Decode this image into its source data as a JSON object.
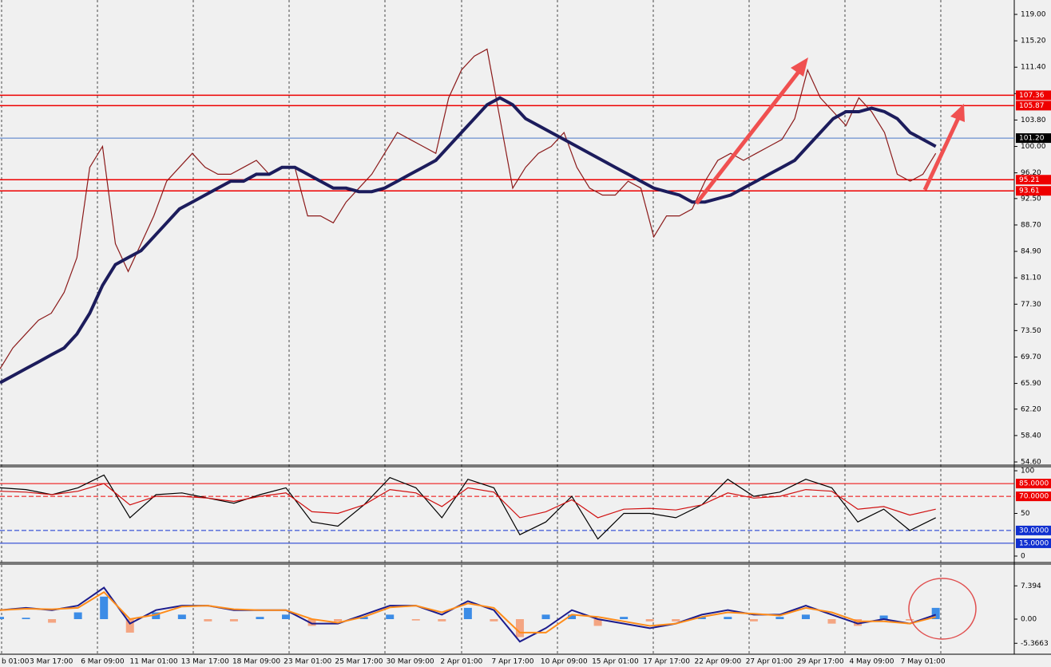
{
  "chart_data": [
    {
      "type": "line",
      "categories": [
        "b 01:00",
        null,
        null,
        null,
        "3 Mar 17:00",
        null,
        null,
        null,
        "6 Mar 09:00",
        null,
        null,
        null,
        "11 Mar 01:00",
        null,
        null,
        null,
        "13 Mar 17:00",
        null,
        null,
        null,
        "18 Mar 09:00",
        null,
        null,
        null,
        "23 Mar 01:00",
        null,
        null,
        null,
        "25 Mar 17:00",
        null,
        null,
        null,
        "30 Mar 09:00",
        null,
        null,
        null,
        "2 Apr 01:00",
        null,
        null,
        null,
        "7 Apr 17:00",
        null,
        null,
        null,
        "10 Apr 09:00",
        null,
        null,
        null,
        "15 Apr 01:00",
        null,
        null,
        null,
        "17 Apr 17:00",
        null,
        null,
        null,
        "22 Apr 09:00",
        null,
        null,
        null,
        "27 Apr 01:00",
        null,
        null,
        null,
        "29 Apr 17:00",
        null,
        null,
        null,
        "4 May 09:00",
        null,
        null,
        null,
        "7 May 01:00",
        null
      ],
      "series": [
        {
          "color": "#8b1a1a",
          "values": [
            68,
            71,
            73,
            75,
            76,
            79,
            84,
            97,
            100,
            86,
            82,
            86,
            90,
            95,
            97,
            99,
            97,
            96,
            96,
            97,
            98,
            96,
            97,
            97,
            90,
            90,
            89,
            92,
            94,
            96,
            99,
            102,
            101,
            100,
            99,
            107,
            111,
            113,
            114,
            104,
            94,
            97,
            99,
            100,
            102,
            97,
            94,
            93,
            93,
            95,
            94,
            87,
            90,
            90,
            91,
            95,
            98,
            99,
            98,
            99,
            100,
            101,
            104,
            111,
            107,
            105,
            103,
            107,
            105,
            102,
            96,
            95,
            96,
            99
          ]
        },
        {
          "color": "#1c1c5c",
          "values": [
            66,
            67,
            68,
            69,
            70,
            71,
            73,
            76,
            80,
            83,
            84,
            85,
            87,
            89,
            91,
            92,
            93,
            94,
            95,
            95,
            96,
            96,
            97,
            97,
            96,
            95,
            94,
            94,
            93.5,
            93.5,
            94,
            95,
            96,
            97,
            98,
            100,
            102,
            104,
            106,
            107,
            106,
            104,
            103,
            102,
            101,
            100,
            99,
            98,
            97,
            96,
            95,
            94,
            93.5,
            93,
            92,
            92,
            92.5,
            93,
            94,
            95,
            96,
            97,
            98,
            100,
            102,
            104,
            105,
            105,
            105.5,
            105,
            104,
            102,
            101,
            100
          ]
        }
      ],
      "ylim": [
        54.14,
        121.07
      ],
      "yticks": [
        {
          "value": 119,
          "label": "119.00"
        },
        {
          "value": 115.2,
          "label": "115.20"
        },
        {
          "value": 111.4,
          "label": "111.40"
        },
        {
          "value": 107.6,
          "label": "107.60"
        },
        {
          "value": 103.8,
          "label": "103.80"
        },
        {
          "value": 100,
          "label": "100.00"
        },
        {
          "value": 96.2,
          "label": "96.20"
        },
        {
          "value": 92.5,
          "label": "92.50"
        },
        {
          "value": 88.7,
          "label": "88.70"
        },
        {
          "value": 84.9,
          "label": "84.90"
        },
        {
          "value": 81.1,
          "label": "81.10"
        },
        {
          "value": 77.3,
          "label": "77.30"
        },
        {
          "value": 73.5,
          "label": "73.50"
        },
        {
          "value": 69.7,
          "label": "69.70"
        },
        {
          "value": 65.9,
          "label": "65.90"
        },
        {
          "value": 62.2,
          "label": "62.20"
        },
        {
          "value": 58.4,
          "label": "58.40"
        },
        {
          "value": 54.6,
          "label": "54.60"
        }
      ],
      "levels": [
        {
          "value": 107.36,
          "label": "107.36",
          "color": "#ee0000"
        },
        {
          "value": 105.87,
          "label": "105.87",
          "color": "#ee0000"
        },
        {
          "value": 101.2,
          "label": "101.20",
          "color": "#000000",
          "line_color": "#4a78c8"
        },
        {
          "value": 95.21,
          "label": "95.21",
          "color": "#ee0000"
        },
        {
          "value": 93.61,
          "label": "93.61",
          "color": "#ee0000"
        }
      ]
    },
    {
      "type": "line",
      "series": [
        {
          "color": "#000000",
          "values": [
            80,
            78,
            72,
            80,
            95,
            45,
            72,
            74,
            68,
            62,
            72,
            80,
            40,
            35,
            60,
            92,
            80,
            45,
            90,
            80,
            25,
            40,
            70,
            20,
            50,
            50,
            45,
            60,
            90,
            70,
            75,
            90,
            80,
            40,
            55,
            30,
            45
          ]
        },
        {
          "color": "#d01010",
          "values": [
            76,
            75,
            72,
            76,
            85,
            60,
            70,
            70,
            68,
            64,
            70,
            74,
            52,
            50,
            60,
            78,
            74,
            58,
            80,
            75,
            45,
            52,
            66,
            45,
            55,
            56,
            54,
            60,
            74,
            68,
            70,
            78,
            76,
            55,
            58,
            48,
            55
          ]
        }
      ],
      "ylim": [
        -7.5,
        104.7
      ],
      "yticks": [
        0,
        50,
        100
      ],
      "levels": [
        {
          "value": 85,
          "label": "85.0000",
          "color": "#ee0000"
        },
        {
          "value": 70,
          "label": "70.0000",
          "color": "#ee0000"
        },
        {
          "value": 30,
          "label": "30.0000",
          "color": "#1030d0"
        },
        {
          "value": 15,
          "label": "15.0000",
          "color": "#1030d0"
        }
      ]
    },
    {
      "type": "macd",
      "values": [
        0.5,
        0.3,
        -0.8,
        1.5,
        5,
        -3,
        1.5,
        1,
        -0.5,
        -0.5,
        0.5,
        1,
        -1.5,
        -0.5,
        0.5,
        1,
        -0.3,
        -0.5,
        2.5,
        -0.5,
        -4,
        1,
        1,
        -1.5,
        0.5,
        -0.5,
        -0.5,
        0.5,
        0.5,
        -0.5,
        0.5,
        1,
        -1,
        -1.5,
        0.8,
        -0.3,
        2.5
      ],
      "bar_colors": [
        "#3c8ce6",
        "#f4a582"
      ],
      "series": [
        {
          "color": "#1c1c8c",
          "values": [
            2,
            2.5,
            2,
            3,
            7,
            -1,
            2,
            3,
            3,
            2,
            2,
            2,
            -1,
            -1,
            1,
            3,
            3,
            1,
            4,
            2,
            -5,
            -2,
            2,
            0,
            -1,
            -2,
            -1,
            1,
            2,
            1,
            1,
            3,
            1,
            -1,
            0,
            -1,
            1
          ]
        },
        {
          "color": "#ff8c1a",
          "values": [
            2,
            2.3,
            2.2,
            2.5,
            6,
            0,
            1,
            2.8,
            3,
            2.2,
            2,
            2,
            0,
            -0.8,
            0.5,
            2.6,
            3,
            1.5,
            3.5,
            2.5,
            -3,
            -3,
            1,
            0.5,
            -0.5,
            -1.5,
            -1,
            0.5,
            1.5,
            1.2,
            0.8,
            2.5,
            1.5,
            -0.5,
            -0.5,
            -1,
            0.5
          ]
        }
      ],
      "ylim": [
        -7.8,
        12.23
      ],
      "yticks": [
        {
          "value": 7.394,
          "label": "7.394"
        },
        {
          "value": 0,
          "label": "0.00"
        },
        {
          "value": -5.3663,
          "label": "-5.3663"
        }
      ]
    }
  ]
}
